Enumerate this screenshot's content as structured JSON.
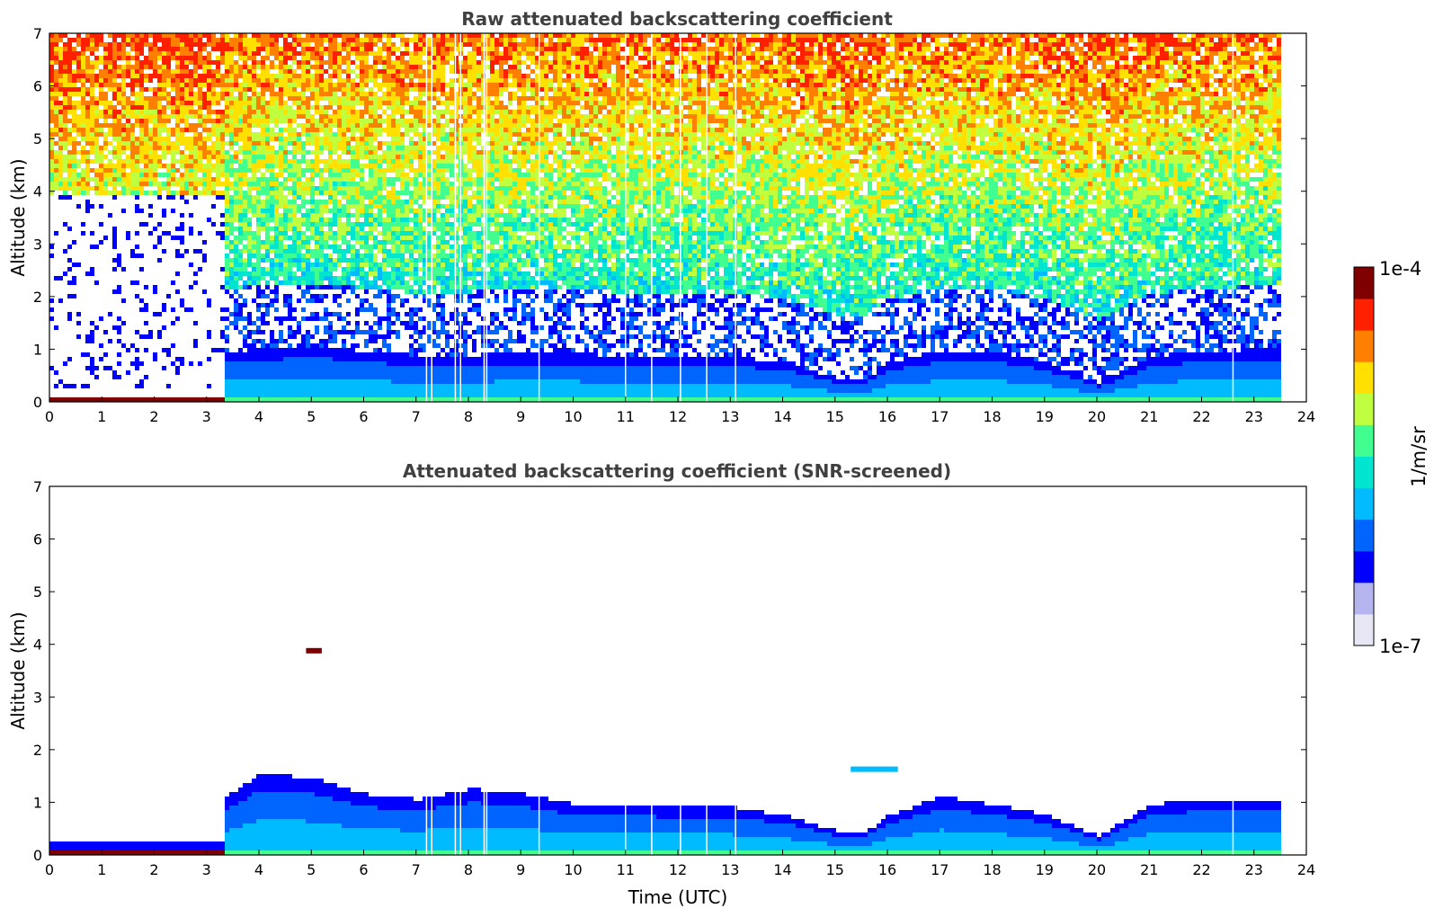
{
  "chart_data": [
    {
      "type": "heatmap",
      "title": "Raw attenuated backscattering coefficient",
      "xlabel": "",
      "ylabel": "Altitude (km)",
      "xlim": [
        0,
        24
      ],
      "ylim": [
        0,
        7
      ],
      "xticks": [
        "0",
        "1",
        "2",
        "3",
        "4",
        "5",
        "6",
        "7",
        "8",
        "9",
        "10",
        "11",
        "12",
        "13",
        "14",
        "15",
        "16",
        "17",
        "18",
        "19",
        "20",
        "21",
        "22",
        "23",
        "24"
      ],
      "yticks": [
        "0",
        "1",
        "2",
        "3",
        "4",
        "5",
        "6",
        "7"
      ],
      "data_end_time": 23.5,
      "boundary_layer_top_km": [
        [
          0,
          0.3
        ],
        [
          3.3,
          0.3
        ],
        [
          3.3,
          1.0
        ],
        [
          5,
          1.1
        ],
        [
          7,
          0.9
        ],
        [
          8.5,
          0.95
        ],
        [
          10,
          0.95
        ],
        [
          12,
          0.9
        ],
        [
          13,
          0.9
        ],
        [
          14,
          0.8
        ],
        [
          15,
          0.5
        ],
        [
          15.5,
          0.45
        ],
        [
          16,
          0.8
        ],
        [
          17,
          1.0
        ],
        [
          18,
          1.0
        ],
        [
          19,
          0.8
        ],
        [
          20,
          0.4
        ],
        [
          21,
          0.9
        ],
        [
          22,
          1.0
        ],
        [
          23.5,
          1.05
        ]
      ],
      "noise_level": "high above 1-2 km (green to orange speckle increasing with altitude)",
      "data_gaps_utc": [
        7.2,
        7.3,
        7.75,
        7.85,
        8.3,
        8.35,
        9.35,
        11.0,
        11.5,
        12.05,
        12.55,
        13.1,
        22.6
      ]
    },
    {
      "type": "heatmap",
      "title": "Attenuated backscattering coefficient (SNR-screened)",
      "xlabel": "Time (UTC)",
      "ylabel": "Altitude (km)",
      "xlim": [
        0,
        24
      ],
      "ylim": [
        0,
        7
      ],
      "xticks": [
        "0",
        "1",
        "2",
        "3",
        "4",
        "5",
        "6",
        "7",
        "8",
        "9",
        "10",
        "11",
        "12",
        "13",
        "14",
        "15",
        "16",
        "17",
        "18",
        "19",
        "20",
        "21",
        "22",
        "23",
        "24"
      ],
      "yticks": [
        "0",
        "1",
        "2",
        "3",
        "4",
        "5",
        "6",
        "7"
      ],
      "data_end_time": 23.5,
      "boundary_layer_top_km": [
        [
          0,
          0.3
        ],
        [
          3.3,
          0.3
        ],
        [
          3.3,
          1.1
        ],
        [
          4,
          1.6
        ],
        [
          5,
          1.5
        ],
        [
          6,
          1.2
        ],
        [
          7,
          1.1
        ],
        [
          8,
          1.3
        ],
        [
          9,
          1.2
        ],
        [
          10,
          1.0
        ],
        [
          12,
          0.95
        ],
        [
          13,
          0.95
        ],
        [
          14,
          0.8
        ],
        [
          15,
          0.5
        ],
        [
          15.5,
          0.45
        ],
        [
          16,
          0.8
        ],
        [
          17,
          1.15
        ],
        [
          18,
          1.0
        ],
        [
          19,
          0.8
        ],
        [
          20,
          0.4
        ],
        [
          21,
          1.0
        ],
        [
          22,
          1.1
        ],
        [
          23.5,
          1.1
        ]
      ],
      "elevated_layers": [
        {
          "start_utc": 15.3,
          "end_utc": 16.2,
          "altitude_km": 1.6
        },
        {
          "start_utc": 4.9,
          "end_utc": 5.2,
          "altitude_km": 3.85
        }
      ]
    }
  ],
  "colorbar": {
    "label": "1/m/sr",
    "max_label": "1e-4",
    "min_label": "1e-7",
    "scale": "log",
    "colors": [
      "#e6e6f5",
      "#b4b4ef",
      "#0000ff",
      "#0064ff",
      "#00bbff",
      "#00e5d0",
      "#40ff90",
      "#c0ff40",
      "#ffe000",
      "#ff8000",
      "#ff2000",
      "#800000"
    ]
  }
}
